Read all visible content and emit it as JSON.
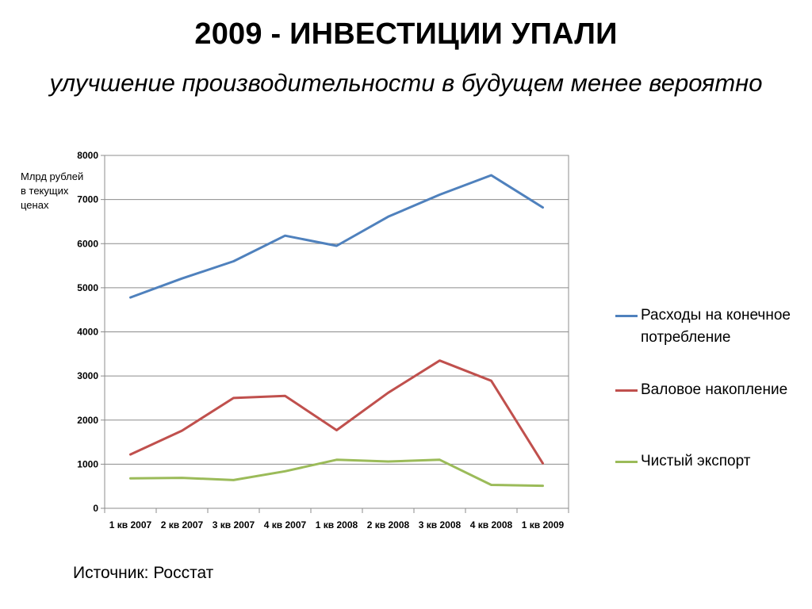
{
  "title": "2009 - ИНВЕСТИЦИИ УПАЛИ",
  "subtitle": "улучшение производительности в будущем  менее вероятно",
  "source": "Источник: Росстат",
  "chart_data": {
    "type": "line",
    "ylabel": "Млрд рублей в текущих ценах",
    "categories": [
      "1 кв 2007",
      "2 кв 2007",
      "3 кв 2007",
      "4 кв 2007",
      "1 кв 2008",
      "2 кв 2008",
      "3 кв 2008",
      "4 кв 2008",
      "1 кв 2009"
    ],
    "ylim": [
      0,
      8000
    ],
    "yticks": [
      0,
      1000,
      2000,
      3000,
      4000,
      5000,
      6000,
      7000,
      8000
    ],
    "grid": true,
    "legend_position": "right",
    "series": [
      {
        "name": "Расходы на конечное потребление",
        "color": "#4F81BD",
        "values": [
          4780,
          5210,
          5600,
          6180,
          5950,
          6610,
          7110,
          7550,
          6820
        ]
      },
      {
        "name": "Валовое накопление",
        "color": "#C0504D",
        "values": [
          1220,
          1760,
          2500,
          2550,
          1770,
          2620,
          3350,
          2890,
          1020
        ]
      },
      {
        "name": "Чистый экспорт",
        "color": "#9BBB59",
        "values": [
          680,
          690,
          640,
          840,
          1100,
          1060,
          1100,
          530,
          510
        ]
      }
    ]
  }
}
